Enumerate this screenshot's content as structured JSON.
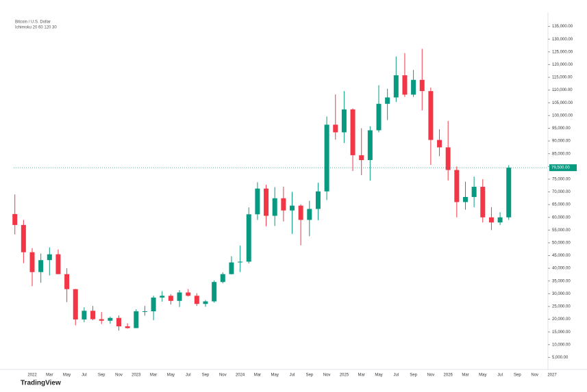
{
  "chart_data": {
    "type": "candlestick",
    "title": "Bitcoin / U.S. Dollar",
    "subtitle": "Ichimoku 20 60 120 30",
    "watermark": "TradingView",
    "up_color": "#089981",
    "down_color": "#f23645",
    "categories": [
      "2021-11",
      "2021-12",
      "2022-01",
      "2022-02",
      "2022-03",
      "2022-04",
      "2022-05",
      "2022-06",
      "2022-07",
      "2022-08",
      "2022-09",
      "2022-10",
      "2022-11",
      "2022-12",
      "2023-01",
      "2023-02",
      "2023-03",
      "2023-04",
      "2023-05",
      "2023-06",
      "2023-07",
      "2023-08",
      "2023-09",
      "2023-10",
      "2023-11",
      "2023-12",
      "2024-01",
      "2024-02",
      "2024-03",
      "2024-04",
      "2024-05",
      "2024-06",
      "2024-07",
      "2024-08",
      "2024-09",
      "2024-10",
      "2024-11",
      "2024-12",
      "2025-01",
      "2025-02",
      "2025-03",
      "2025-04",
      "2025-05",
      "2025-06",
      "2025-07",
      "2025-08",
      "2025-09",
      "2025-10",
      "2025-11",
      "2025-12",
      "2026-01",
      "2026-02",
      "2026-03",
      "2026-04",
      "2026-05",
      "2026-06",
      "2026-07",
      "2026-08"
    ],
    "open": [
      61300,
      57000,
      46300,
      38500,
      43200,
      45500,
      37700,
      31800,
      19900,
      23300,
      20000,
      19400,
      20500,
      17200,
      16500,
      23100,
      23100,
      28500,
      29200,
      27200,
      30500,
      29200,
      26000,
      27000,
      34600,
      37700,
      42300,
      42600,
      61200,
      71300,
      60600,
      67500,
      62700,
      64600,
      59000,
      63300,
      70200,
      96400,
      93400,
      102400,
      84400,
      82500,
      94200,
      104600,
      107100,
      115800,
      108200,
      114000,
      109600,
      90400,
      87500,
      78600,
      66000,
      68000,
      72000,
      60000,
      58000,
      60000
    ],
    "high": [
      69000,
      59000,
      47900,
      45800,
      48200,
      47400,
      40000,
      31900,
      24700,
      25200,
      22800,
      21000,
      21500,
      18400,
      23900,
      25200,
      29200,
      31000,
      29800,
      31400,
      31800,
      30200,
      27500,
      35200,
      38400,
      44700,
      48900,
      63900,
      73800,
      72800,
      71900,
      72000,
      70000,
      65100,
      66500,
      73600,
      99600,
      108300,
      109600,
      102800,
      95000,
      95800,
      111900,
      110500,
      123200,
      124500,
      117900,
      126200,
      111000,
      94600,
      97900,
      80000,
      74000,
      76000,
      75000,
      64000,
      62000,
      80500
    ],
    "low": [
      53300,
      42000,
      33000,
      34300,
      37200,
      37700,
      26700,
      17600,
      18800,
      19600,
      18100,
      18200,
      15500,
      16300,
      16500,
      21400,
      19600,
      26900,
      25800,
      24800,
      28900,
      25200,
      24900,
      26500,
      34100,
      37600,
      38500,
      41900,
      59000,
      56500,
      56600,
      58400,
      53500,
      49000,
      52600,
      58900,
      66800,
      90500,
      89200,
      78200,
      76600,
      74400,
      93400,
      98200,
      105300,
      107300,
      107300,
      102000,
      80600,
      84000,
      74500,
      60000,
      63000,
      64000,
      58000,
      55000,
      57000,
      59000
    ],
    "close": [
      57000,
      46300,
      38500,
      43200,
      45500,
      37700,
      31800,
      19900,
      23300,
      20000,
      19400,
      20500,
      17200,
      16500,
      23100,
      23100,
      28500,
      29200,
      27200,
      30500,
      29200,
      26000,
      27000,
      34600,
      37700,
      42300,
      42600,
      61200,
      71300,
      60600,
      67500,
      62700,
      64600,
      59000,
      63300,
      70200,
      96400,
      93400,
      102400,
      84400,
      82500,
      94200,
      104600,
      107100,
      115800,
      108200,
      114000,
      109600,
      90400,
      87500,
      78600,
      66000,
      68000,
      72000,
      60000,
      58000,
      60000,
      79500
    ],
    "last_label": "79,500.00",
    "ylim": [
      0,
      140000
    ],
    "yticks": [
      {
        "value": 5000,
        "label": "5,000.00"
      },
      {
        "value": 10000,
        "label": "10,000.00"
      },
      {
        "value": 15000,
        "label": "15,000.00"
      },
      {
        "value": 20000,
        "label": "20,000.00"
      },
      {
        "value": 25000,
        "label": "25,000.00"
      },
      {
        "value": 30000,
        "label": "30,000.00"
      },
      {
        "value": 35000,
        "label": "35,000.00"
      },
      {
        "value": 40000,
        "label": "40,000.00"
      },
      {
        "value": 45000,
        "label": "45,000.00"
      },
      {
        "value": 50000,
        "label": "50,000.00"
      },
      {
        "value": 55000,
        "label": "55,000.00"
      },
      {
        "value": 60000,
        "label": "60,000.00"
      },
      {
        "value": 65000,
        "label": "65,000.00"
      },
      {
        "value": 70000,
        "label": "70,000.00"
      },
      {
        "value": 75000,
        "label": "75,000.00"
      },
      {
        "value": 80000,
        "label": "80,000.00"
      },
      {
        "value": 85000,
        "label": "85,000.00"
      },
      {
        "value": 90000,
        "label": "90,000.00"
      },
      {
        "value": 95000,
        "label": "95,000.00"
      },
      {
        "value": 100000,
        "label": "100,000.00"
      },
      {
        "value": 105000,
        "label": "105,000.00"
      },
      {
        "value": 110000,
        "label": "110,000.00"
      },
      {
        "value": 115000,
        "label": "115,000.00"
      },
      {
        "value": 120000,
        "label": "120,000.00"
      },
      {
        "value": 125000,
        "label": "125,000.00"
      },
      {
        "value": 130000,
        "label": "130,000.00"
      },
      {
        "value": 135000,
        "label": "135,000.00"
      }
    ],
    "xticks": [
      {
        "value": "2022-01",
        "label": "2022"
      },
      {
        "value": "2022-03",
        "label": "Mar"
      },
      {
        "value": "2022-05",
        "label": "May"
      },
      {
        "value": "2022-07",
        "label": "Jul"
      },
      {
        "value": "2022-09",
        "label": "Sep"
      },
      {
        "value": "2022-11",
        "label": "Nov"
      },
      {
        "value": "2023-01",
        "label": "2023"
      },
      {
        "value": "2023-03",
        "label": "Mar"
      },
      {
        "value": "2023-05",
        "label": "May"
      },
      {
        "value": "2023-07",
        "label": "Jul"
      },
      {
        "value": "2023-09",
        "label": "Sep"
      },
      {
        "value": "2023-11",
        "label": "Nov"
      },
      {
        "value": "2024-01",
        "label": "2024"
      },
      {
        "value": "2024-03",
        "label": "Mar"
      },
      {
        "value": "2024-05",
        "label": "May"
      },
      {
        "value": "2024-07",
        "label": "Jul"
      },
      {
        "value": "2024-09",
        "label": "Sep"
      },
      {
        "value": "2024-11",
        "label": "Nov"
      },
      {
        "value": "2025-01",
        "label": "2025"
      },
      {
        "value": "2025-03",
        "label": "Mar"
      },
      {
        "value": "2025-05",
        "label": "May"
      },
      {
        "value": "2025-07",
        "label": "Jul"
      },
      {
        "value": "2025-09",
        "label": "Sep"
      },
      {
        "value": "2025-11",
        "label": "Nov"
      },
      {
        "value": "2026-01",
        "label": "2026"
      },
      {
        "value": "2026-03",
        "label": "Mar"
      },
      {
        "value": "2026-05",
        "label": "May"
      },
      {
        "value": "2026-07",
        "label": "Jul"
      },
      {
        "value": "2026-09",
        "label": "Sep"
      },
      {
        "value": "2026-11",
        "label": "Nov"
      },
      {
        "value": "2027-01",
        "label": "2027"
      }
    ]
  }
}
